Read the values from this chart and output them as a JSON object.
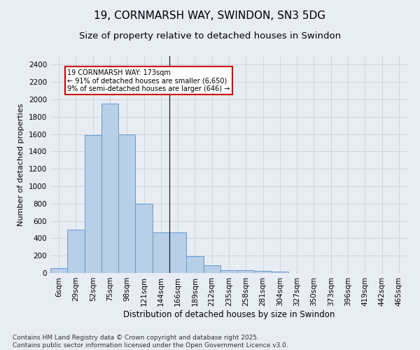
{
  "title": "19, CORNMARSH WAY, SWINDON, SN3 5DG",
  "subtitle": "Size of property relative to detached houses in Swindon",
  "xlabel": "Distribution of detached houses by size in Swindon",
  "ylabel": "Number of detached properties",
  "footer_line1": "Contains HM Land Registry data © Crown copyright and database right 2025.",
  "footer_line2": "Contains public sector information licensed under the Open Government Licence v3.0.",
  "categories": [
    "6sqm",
    "29sqm",
    "52sqm",
    "75sqm",
    "98sqm",
    "121sqm",
    "144sqm",
    "166sqm",
    "189sqm",
    "212sqm",
    "235sqm",
    "258sqm",
    "281sqm",
    "304sqm",
    "327sqm",
    "350sqm",
    "373sqm",
    "396sqm",
    "419sqm",
    "442sqm",
    "465sqm"
  ],
  "values": [
    55,
    500,
    1590,
    1950,
    1600,
    800,
    470,
    470,
    195,
    90,
    35,
    30,
    25,
    15,
    0,
    0,
    0,
    0,
    0,
    0,
    0
  ],
  "bar_color": "#b8cfe8",
  "bar_edge_color": "#6699cc",
  "background_color": "#e8edf4",
  "annotation_text_line1": "19 CORNMARSH WAY: 173sqm",
  "annotation_text_line2": "← 91% of detached houses are smaller (6,650)",
  "annotation_text_line3": "9% of semi-detached houses are larger (646) →",
  "annotation_box_color": "#ffffff",
  "annotation_box_edge": "#cc0000",
  "vline_x": 6.5,
  "vline_color": "#222222",
  "ylim": [
    0,
    2500
  ],
  "yticks": [
    0,
    200,
    400,
    600,
    800,
    1000,
    1200,
    1400,
    1600,
    1800,
    2000,
    2200,
    2400
  ],
  "grid_color": "#c0cad6",
  "title_fontsize": 11,
  "subtitle_fontsize": 9.5,
  "xlabel_fontsize": 8.5,
  "ylabel_fontsize": 8,
  "tick_fontsize": 7.5,
  "footer_fontsize": 6.5
}
